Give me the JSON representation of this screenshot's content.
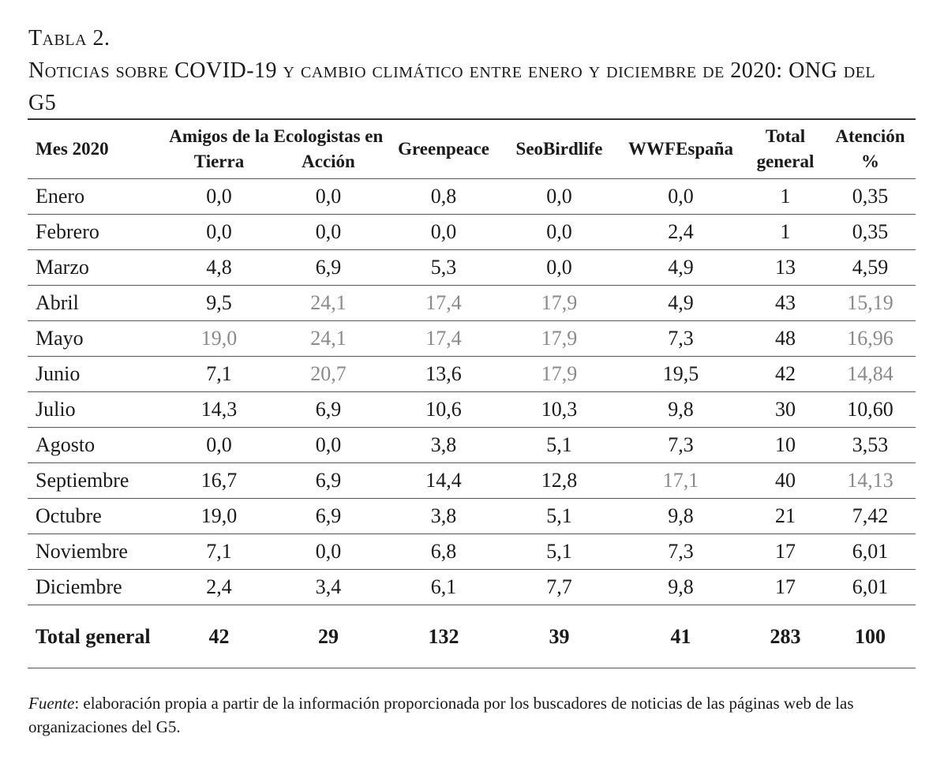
{
  "caption": {
    "label": "Tabla 2.",
    "title": "Noticias sobre COVID-19 y cambio climático entre enero y diciembre de 2020: ONG del G5"
  },
  "table": {
    "header": [
      "Mes 2020",
      "Amigos de la Tierra",
      "Ecologistas en Acción",
      "Greenpeace",
      "SeoBirdlife",
      "WWFEspaña",
      "Total general",
      "Atención %"
    ],
    "rows": [
      [
        "Enero",
        "0,0",
        "0,0",
        "0,8",
        "0,0",
        "0,0",
        "1",
        "0,35"
      ],
      [
        "Febrero",
        "0,0",
        "0,0",
        "0,0",
        "0,0",
        "2,4",
        "1",
        "0,35"
      ],
      [
        "Marzo",
        "4,8",
        "6,9",
        "5,3",
        "0,0",
        "4,9",
        "13",
        "4,59"
      ],
      [
        "Abril",
        "9,5",
        "24,1",
        "17,4",
        "17,9",
        "4,9",
        "43",
        "15,19"
      ],
      [
        "Mayo",
        "19,0",
        "24,1",
        "17,4",
        "17,9",
        "7,3",
        "48",
        "16,96"
      ],
      [
        "Junio",
        "7,1",
        "20,7",
        "13,6",
        "17,9",
        "19,5",
        "42",
        "14,84"
      ],
      [
        "Julio",
        "14,3",
        "6,9",
        "10,6",
        "10,3",
        "9,8",
        "30",
        "10,60"
      ],
      [
        "Agosto",
        "0,0",
        "0,0",
        "3,8",
        "5,1",
        "7,3",
        "10",
        "3,53"
      ],
      [
        "Septiembre",
        "16,7",
        "6,9",
        "14,4",
        "12,8",
        "17,1",
        "40",
        "14,13"
      ],
      [
        "Octubre",
        "19,0",
        "6,9",
        "3,8",
        "5,1",
        "9,8",
        "21",
        "7,42"
      ],
      [
        "Noviembre",
        "7,1",
        "0,0",
        "6,8",
        "5,1",
        "7,3",
        "17",
        "6,01"
      ],
      [
        "Diciembre",
        "2,4",
        "3,4",
        "6,1",
        "7,7",
        "9,8",
        "17",
        "6,01"
      ]
    ],
    "total": [
      "Total general",
      "42",
      "29",
      "132",
      "39",
      "41",
      "283",
      "100"
    ],
    "highlight_color": "#8a8a8a",
    "highlighted_cells": [
      [
        3,
        2
      ],
      [
        3,
        3
      ],
      [
        3,
        4
      ],
      [
        3,
        7
      ],
      [
        4,
        1
      ],
      [
        4,
        2
      ],
      [
        4,
        3
      ],
      [
        4,
        4
      ],
      [
        4,
        7
      ],
      [
        5,
        2
      ],
      [
        5,
        4
      ],
      [
        5,
        7
      ],
      [
        8,
        5
      ],
      [
        8,
        7
      ]
    ]
  },
  "source": {
    "label": "Fuente",
    "text": ": elaboración propia a partir de la información proporcionada por los buscadores de noticias de las páginas web de las organizaciones del G5."
  }
}
